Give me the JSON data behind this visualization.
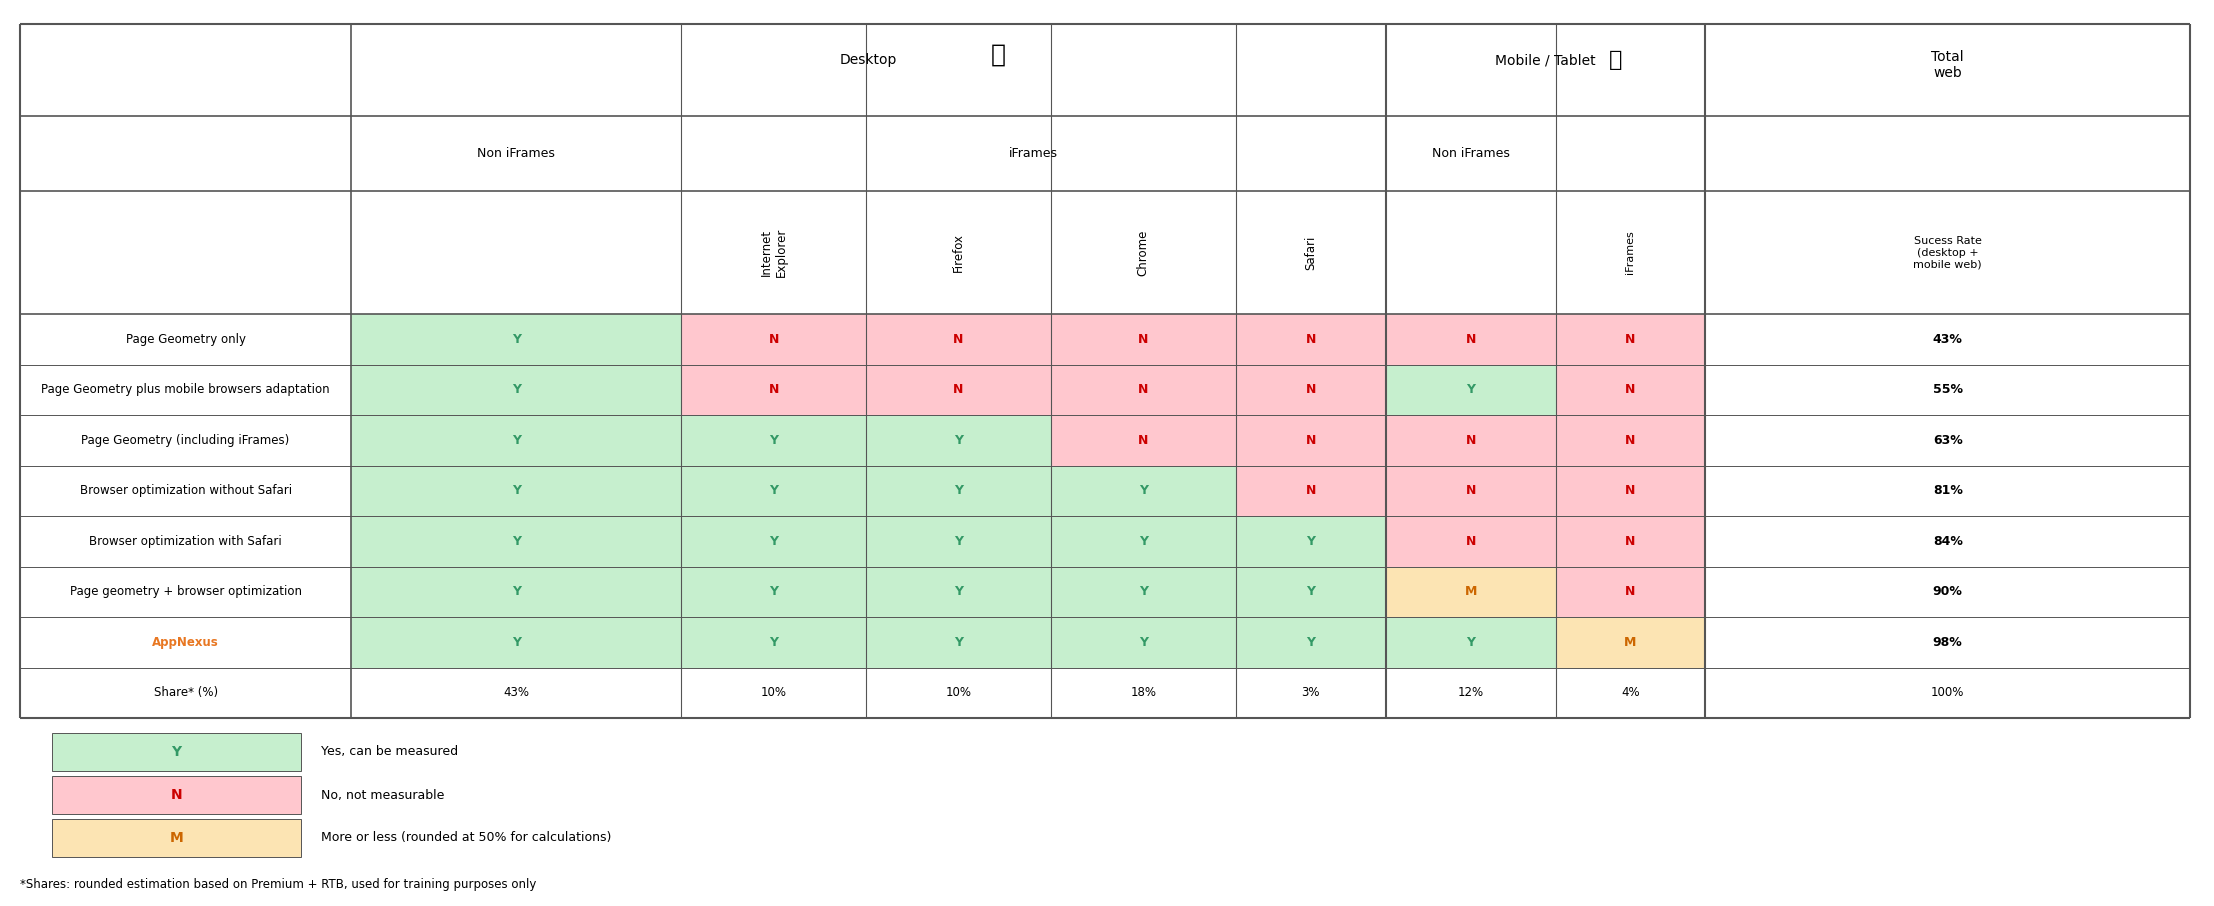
{
  "title_desktop": "Desktop",
  "title_mobile": "Mobile / Tablet",
  "title_total": "Total\nweb",
  "col_header_non_iframes_desktop": "Non iFrames",
  "col_header_iframes": "iFrames",
  "col_header_non_iframes_mobile": "Non iFrames",
  "col_header_iframes_mobile": "iFrames",
  "col_header_sucess": "Sucess Rate\n(desktop +\nmobile web)",
  "browser_labels": [
    "Internet\nExplorer",
    "Firefox",
    "Chrome",
    "Safari"
  ],
  "row_labels": [
    "Page Geometry only",
    "Page Geometry plus mobile browsers adaptation",
    "Page Geometry (including iFrames)",
    "Browser optimization without Safari",
    "Browser optimization with Safari",
    "Page geometry + browser optimization",
    "AppNexus",
    "Share* (%)"
  ],
  "share_row": [
    "43%",
    "10%",
    "10%",
    "18%",
    "3%",
    "12%",
    "4%",
    "100%"
  ],
  "success_rates": [
    "43%",
    "55%",
    "63%",
    "81%",
    "84%",
    "90%",
    "98%"
  ],
  "appnexus_color": "#E87722",
  "cell_data": [
    [
      "Y",
      "N",
      "N",
      "N",
      "N",
      "N",
      "N"
    ],
    [
      "Y",
      "N",
      "N",
      "N",
      "N",
      "Y",
      "N"
    ],
    [
      "Y",
      "Y",
      "Y",
      "N",
      "N",
      "N",
      "N"
    ],
    [
      "Y",
      "Y",
      "Y",
      "Y",
      "N",
      "N",
      "N"
    ],
    [
      "Y",
      "Y",
      "Y",
      "Y",
      "Y",
      "N",
      "N"
    ],
    [
      "Y",
      "Y",
      "Y",
      "Y",
      "Y",
      "M",
      "N"
    ],
    [
      "Y",
      "Y",
      "Y",
      "Y",
      "Y",
      "Y",
      "M"
    ]
  ],
  "color_Y": "#c6efce",
  "color_N": "#ffc7ce",
  "color_M": "#fce4b3",
  "text_Y": "#339966",
  "text_N": "#cc0000",
  "text_M": "#cc6600",
  "legend_Y_bg": "#c6efce",
  "legend_N_bg": "#ffc7ce",
  "legend_M_bg": "#fce4b3",
  "bg_color": "#ffffff",
  "border_color": "#666666",
  "footnote": "*Shares: rounded estimation based on Premium + RTB, used for training purposes only"
}
